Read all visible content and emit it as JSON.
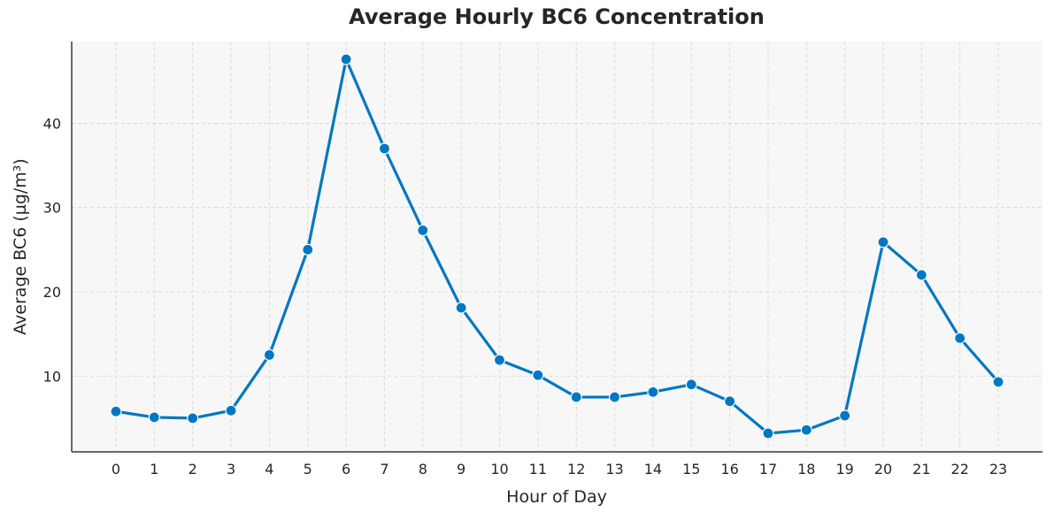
{
  "chart_data": {
    "type": "line",
    "title": "Average Hourly BC6 Concentration",
    "xlabel": "Hour of Day",
    "ylabel": "Average BC6 (µg/m³)",
    "categories": [
      "0",
      "1",
      "2",
      "3",
      "4",
      "5",
      "6",
      "7",
      "8",
      "9",
      "10",
      "11",
      "12",
      "13",
      "14",
      "15",
      "16",
      "17",
      "18",
      "19",
      "20",
      "21",
      "22",
      "23"
    ],
    "series": [
      {
        "values": [
          5.8,
          5.1,
          5.0,
          5.9,
          12.5,
          25.0,
          47.6,
          37.0,
          27.3,
          18.1,
          11.9,
          10.1,
          7.5,
          7.5,
          8.1,
          9.0,
          7.0,
          3.2,
          3.6,
          5.3,
          25.9,
          22.0,
          14.5,
          9.3
        ]
      }
    ],
    "yticks": [
      10,
      20,
      30,
      40
    ],
    "ylim": [
      1,
      49.7
    ],
    "grid": true,
    "colors": {
      "line": "#0077c2",
      "plot_background": "#f7f7f7",
      "grid": "#d4d4d4"
    }
  }
}
